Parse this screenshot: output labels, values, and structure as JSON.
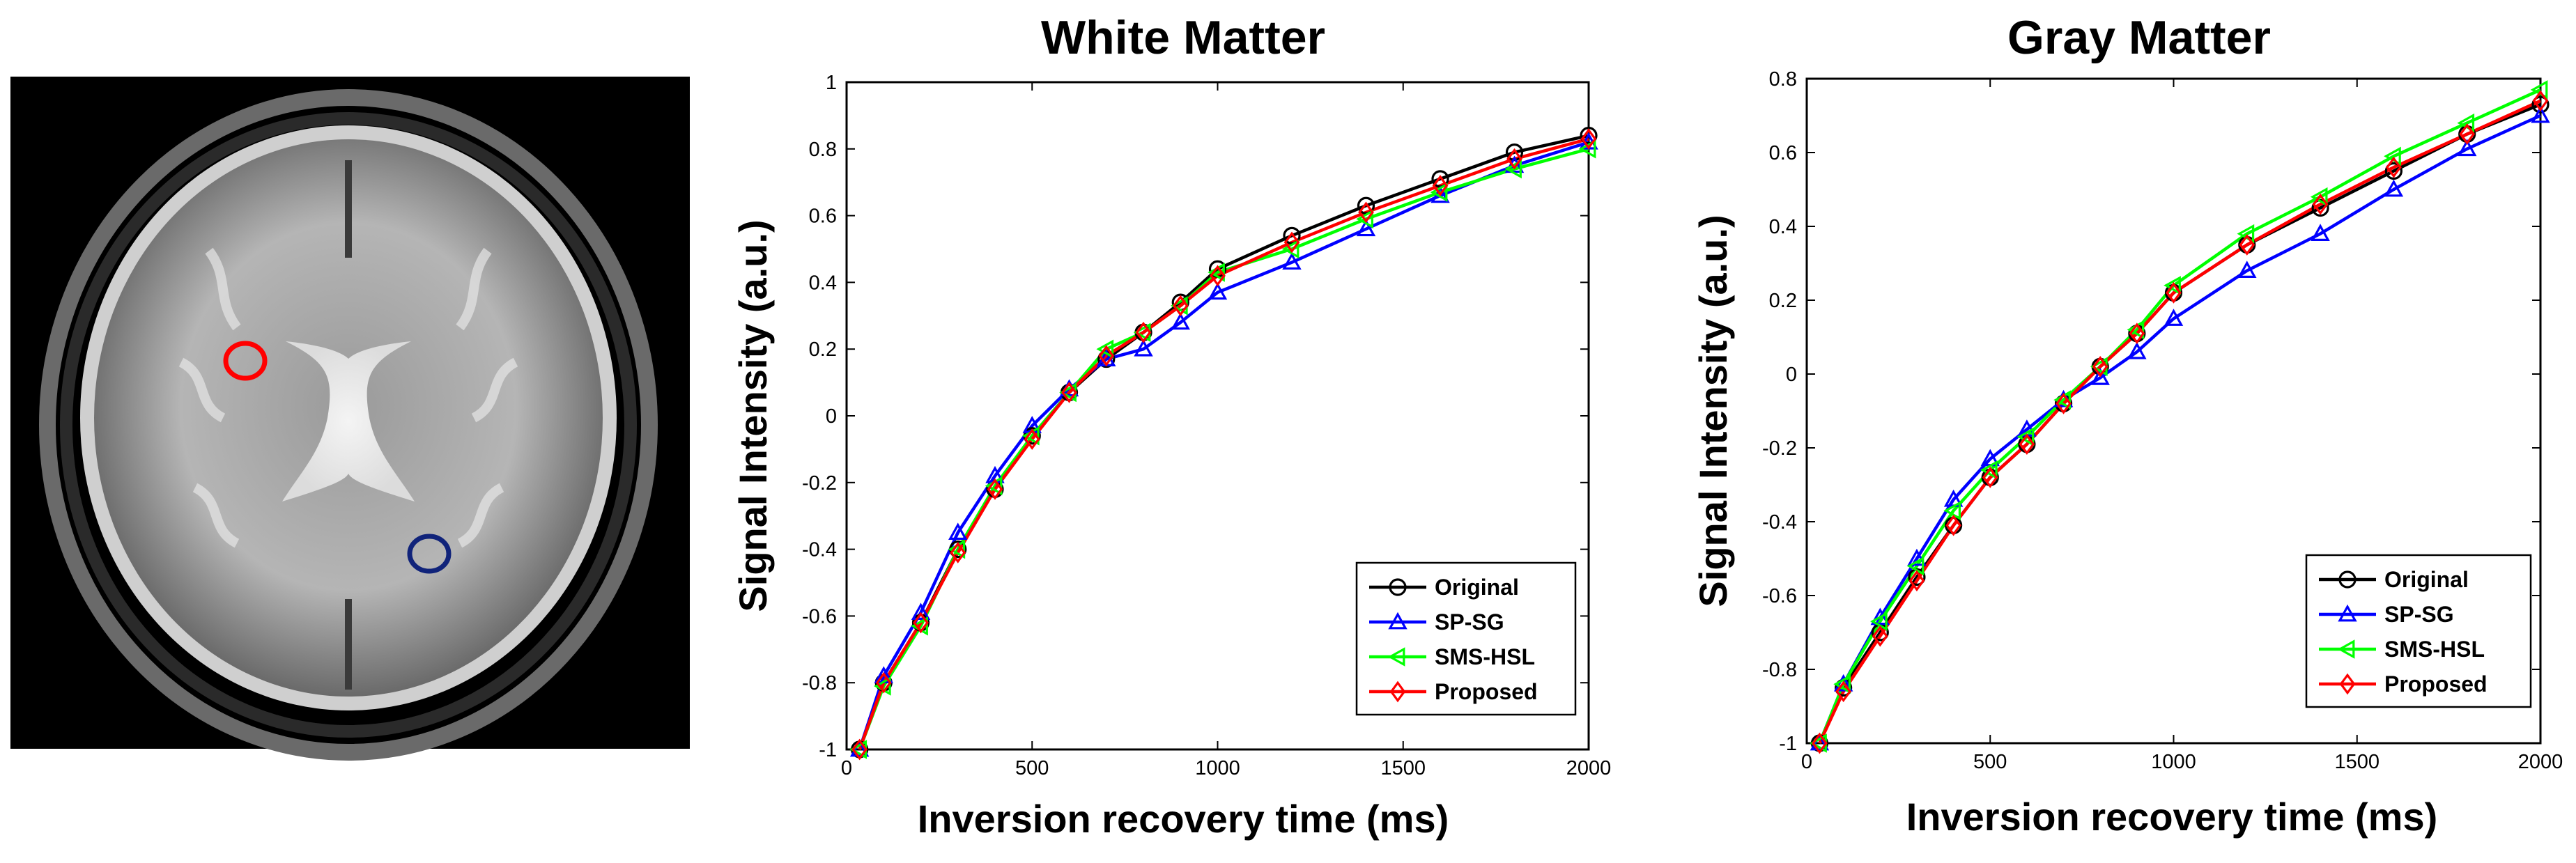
{
  "brain_image": {
    "description_label": "Brain MRI slice with ROIs",
    "roi_colors": {
      "white_matter": "#ff0000",
      "gray_matter": "#10237a"
    }
  },
  "chart_data": [
    {
      "type": "line",
      "title": "White Matter",
      "xlabel": "Inversion recovery time (ms)",
      "ylabel": "Signal Intensity (a.u.)",
      "xlim": [
        0,
        2000
      ],
      "ylim": [
        -1,
        1
      ],
      "xticks": [
        0,
        500,
        1000,
        1500,
        2000
      ],
      "yticks": [
        -1,
        -0.8,
        -0.6,
        -0.4,
        -0.2,
        0,
        0.2,
        0.4,
        0.6,
        0.8,
        1
      ],
      "grid": false,
      "legend_position": "bottom-right",
      "x": [
        35,
        100,
        200,
        300,
        400,
        500,
        600,
        700,
        800,
        900,
        1000,
        1200,
        1400,
        1600,
        1800,
        2000
      ],
      "series": [
        {
          "name": "Original",
          "color": "#000000",
          "marker": "circle",
          "values": [
            -1.0,
            -0.8,
            -0.62,
            -0.4,
            -0.22,
            -0.06,
            0.07,
            0.17,
            0.25,
            0.34,
            0.44,
            0.54,
            0.63,
            0.71,
            0.79,
            0.84
          ]
        },
        {
          "name": "SP-SG",
          "color": "#0000ff",
          "marker": "triangle-up",
          "values": [
            -1.0,
            -0.78,
            -0.59,
            -0.35,
            -0.18,
            -0.03,
            0.08,
            0.17,
            0.2,
            0.28,
            0.37,
            0.46,
            0.56,
            0.66,
            0.75,
            0.82
          ]
        },
        {
          "name": "SMS-HSL",
          "color": "#00ff00",
          "marker": "triangle-left",
          "values": [
            -1.0,
            -0.81,
            -0.63,
            -0.4,
            -0.21,
            -0.06,
            0.07,
            0.2,
            0.25,
            0.33,
            0.43,
            0.5,
            0.59,
            0.67,
            0.74,
            0.8
          ]
        },
        {
          "name": "Proposed",
          "color": "#ff0000",
          "marker": "diamond",
          "values": [
            -1.0,
            -0.8,
            -0.62,
            -0.41,
            -0.22,
            -0.07,
            0.07,
            0.18,
            0.25,
            0.33,
            0.42,
            0.52,
            0.61,
            0.69,
            0.77,
            0.83
          ]
        }
      ]
    },
    {
      "type": "line",
      "title": "Gray Matter",
      "xlabel": "Inversion recovery time (ms)",
      "ylabel": "Signal Intensity (a.u.)",
      "xlim": [
        0,
        2000
      ],
      "ylim": [
        -1,
        0.8
      ],
      "xticks": [
        0,
        500,
        1000,
        1500,
        2000
      ],
      "yticks": [
        -1,
        -0.8,
        -0.6,
        -0.4,
        -0.2,
        0,
        0.2,
        0.4,
        0.6,
        0.8
      ],
      "grid": false,
      "legend_position": "bottom-right",
      "x": [
        35,
        100,
        200,
        300,
        400,
        500,
        600,
        700,
        800,
        900,
        1000,
        1200,
        1400,
        1600,
        1800,
        2000
      ],
      "series": [
        {
          "name": "Original",
          "color": "#000000",
          "marker": "circle",
          "values": [
            -1.0,
            -0.85,
            -0.7,
            -0.55,
            -0.41,
            -0.28,
            -0.19,
            -0.08,
            0.02,
            0.11,
            0.22,
            0.35,
            0.45,
            0.55,
            0.65,
            0.73
          ]
        },
        {
          "name": "SP-SG",
          "color": "#0000ff",
          "marker": "triangle-up",
          "values": [
            -1.0,
            -0.84,
            -0.66,
            -0.5,
            -0.34,
            -0.23,
            -0.15,
            -0.07,
            -0.01,
            0.06,
            0.15,
            0.28,
            0.38,
            0.5,
            0.61,
            0.7
          ]
        },
        {
          "name": "SMS-HSL",
          "color": "#00ff00",
          "marker": "triangle-left",
          "values": [
            -1.0,
            -0.84,
            -0.67,
            -0.52,
            -0.37,
            -0.26,
            -0.17,
            -0.07,
            0.02,
            0.12,
            0.24,
            0.38,
            0.48,
            0.59,
            0.68,
            0.77
          ]
        },
        {
          "name": "Proposed",
          "color": "#ff0000",
          "marker": "diamond",
          "values": [
            -1.0,
            -0.86,
            -0.71,
            -0.56,
            -0.41,
            -0.28,
            -0.19,
            -0.08,
            0.02,
            0.11,
            0.22,
            0.35,
            0.46,
            0.56,
            0.65,
            0.74
          ]
        }
      ]
    }
  ]
}
